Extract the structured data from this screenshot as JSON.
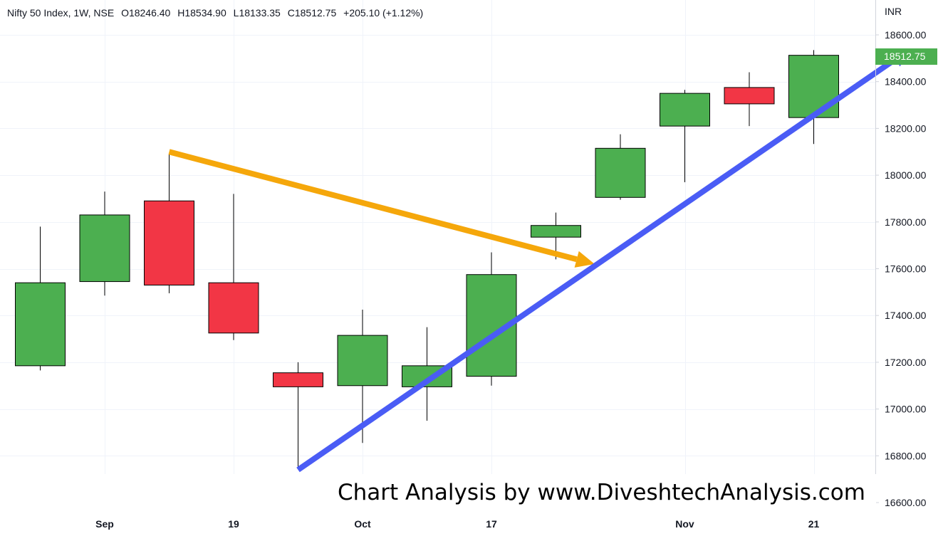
{
  "legend": {
    "symbol": "Nifty 50 Index, 1W, NSE",
    "open": "O18246.40",
    "high": "H18534.90",
    "low": "L18133.35",
    "close": "C18512.75",
    "change": "+205.10 (+1.12%)"
  },
  "price_axis": {
    "currency": "INR",
    "last_price_label": "18512.75"
  },
  "watermark": "Chart Analysis by www.DiveshtechAnalysis.com",
  "colors": {
    "up": "#4caf50",
    "down": "#f23645",
    "grid": "#f0f3fa",
    "arrow_orange": "#f5a70b",
    "arrow_blue": "#4a5cf5",
    "text": "#131722"
  },
  "chart_data": {
    "type": "candlestick",
    "title": "Nifty 50 Index, 1W, NSE",
    "ylim": [
      16600,
      18600
    ],
    "y_ticks": [
      16600,
      16800,
      17000,
      17200,
      17400,
      17600,
      17800,
      18000,
      18200,
      18400,
      18600
    ],
    "y_tick_labels": [
      "16600.00",
      "16800.00",
      "17000.00",
      "17200.00",
      "17400.00",
      "17600.00",
      "17800.00",
      "18000.00",
      "18200.00",
      "18400.00",
      "18600.00"
    ],
    "x_ticks": [
      {
        "index": 1,
        "label": "Sep"
      },
      {
        "index": 3,
        "label": "19"
      },
      {
        "index": 5,
        "label": "Oct"
      },
      {
        "index": 7,
        "label": "17"
      },
      {
        "index": 10,
        "label": "Nov"
      },
      {
        "index": 12,
        "label": "21"
      }
    ],
    "grid": true,
    "candles": [
      {
        "index": 0,
        "open": 17185,
        "high": 17780,
        "low": 17165,
        "close": 17540
      },
      {
        "index": 1,
        "open": 17545,
        "high": 17930,
        "low": 17485,
        "close": 17830
      },
      {
        "index": 2,
        "open": 17890,
        "high": 18095,
        "low": 17495,
        "close": 17530
      },
      {
        "index": 3,
        "open": 17540,
        "high": 17920,
        "low": 17295,
        "close": 17325
      },
      {
        "index": 4,
        "open": 17155,
        "high": 17200,
        "low": 16750,
        "close": 17095
      },
      {
        "index": 5,
        "open": 17100,
        "high": 17425,
        "low": 16855,
        "close": 17315
      },
      {
        "index": 6,
        "open": 17095,
        "high": 17350,
        "low": 16950,
        "close": 17185
      },
      {
        "index": 7,
        "open": 17140,
        "high": 17670,
        "low": 17100,
        "close": 17575
      },
      {
        "index": 8,
        "open": 17735,
        "high": 17840,
        "low": 17640,
        "close": 17785
      },
      {
        "index": 9,
        "open": 17905,
        "high": 18175,
        "low": 17895,
        "close": 18115
      },
      {
        "index": 10,
        "open": 18210,
        "high": 18365,
        "low": 17970,
        "close": 18350
      },
      {
        "index": 11,
        "open": 18375,
        "high": 18440,
        "low": 18210,
        "close": 18305
      },
      {
        "index": 12,
        "open": 18246.4,
        "high": 18534.9,
        "low": 18133.35,
        "close": 18512.75
      }
    ],
    "annotations": [
      {
        "type": "arrow",
        "color": "orange",
        "from": {
          "index": 2,
          "value": 18100
        },
        "to": {
          "index": 8.6,
          "value": 17620
        }
      },
      {
        "type": "arrow",
        "color": "blue",
        "from": {
          "index": 4,
          "value": 16740
        },
        "to": {
          "index": 13.5,
          "value": 18540
        }
      }
    ]
  }
}
